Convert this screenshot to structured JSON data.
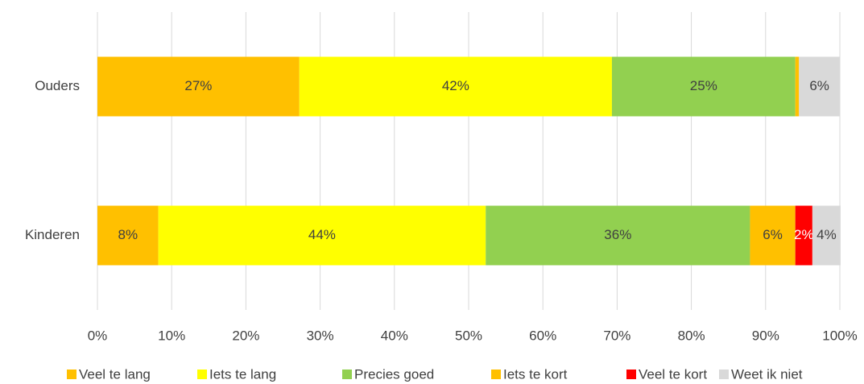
{
  "chart_data": {
    "type": "bar",
    "orientation": "horizontal",
    "stacked": true,
    "categories": [
      "Ouders",
      "Kinderen"
    ],
    "series": [
      {
        "name": "Veel te lang",
        "color": "#FFC000",
        "values": [
          27.2,
          8.2
        ],
        "value_labels": [
          "27%",
          "8%"
        ]
      },
      {
        "name": "Iets te lang",
        "color": "#FFFF00",
        "values": [
          42.1,
          44.1
        ],
        "value_labels": [
          "42%",
          "44%"
        ]
      },
      {
        "name": "Precies goed",
        "color": "#92D050",
        "values": [
          24.7,
          35.6
        ],
        "value_labels": [
          "25%",
          "36%"
        ]
      },
      {
        "name": "Iets te kort",
        "color": "#FFC000",
        "values": [
          0.5,
          6.1
        ],
        "value_labels": [
          null,
          "6%"
        ]
      },
      {
        "name": "Veel te kort",
        "color": "#FF0000",
        "values": [
          0,
          2.3
        ],
        "value_labels": [
          null,
          "2%"
        ]
      },
      {
        "name": "Weet ik niet",
        "color": "#D9D9D9",
        "values": [
          5.5,
          3.8
        ],
        "value_labels": [
          "6%",
          "4%"
        ]
      }
    ],
    "xlim": [
      0,
      100
    ],
    "xticks": [
      {
        "value": 0,
        "label": "0%"
      },
      {
        "value": 10,
        "label": "10%"
      },
      {
        "value": 20,
        "label": "20%"
      },
      {
        "value": 30,
        "label": "30%"
      },
      {
        "value": 40,
        "label": "40%"
      },
      {
        "value": 50,
        "label": "50%"
      },
      {
        "value": 60,
        "label": "60%"
      },
      {
        "value": 70,
        "label": "70%"
      },
      {
        "value": 80,
        "label": "80%"
      },
      {
        "value": 90,
        "label": "90%"
      },
      {
        "value": 100,
        "label": "100%"
      }
    ],
    "grid": true,
    "legend": "bottom"
  }
}
